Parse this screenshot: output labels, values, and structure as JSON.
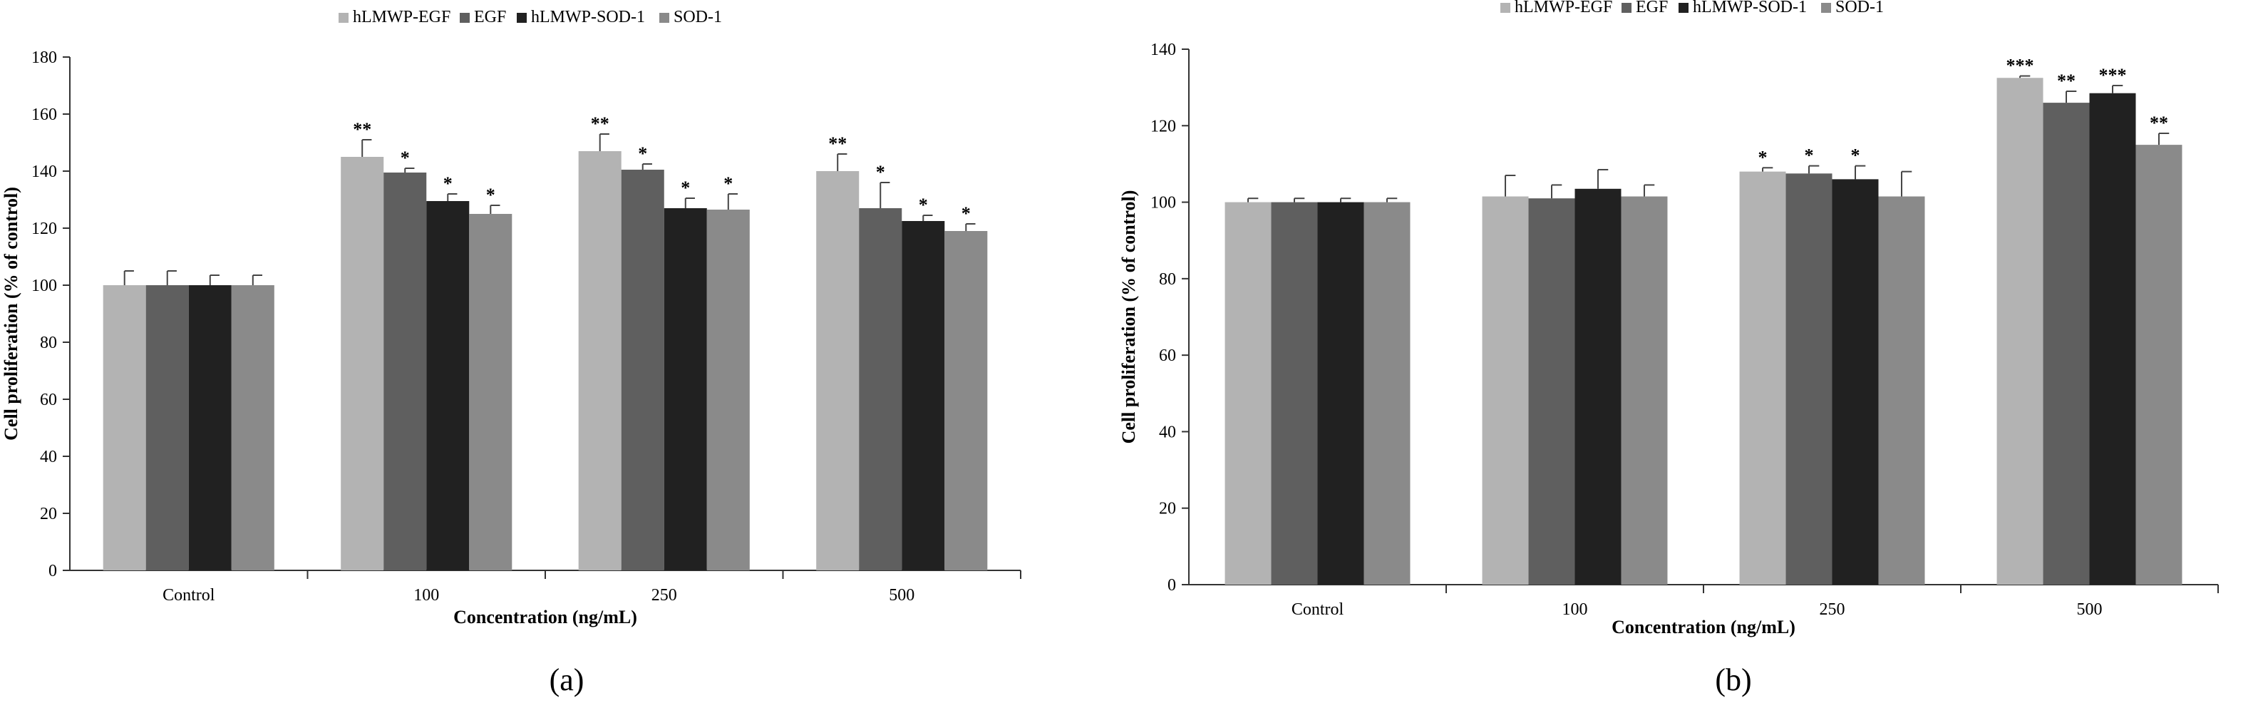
{
  "colors": {
    "hLMWP-EGF": "#b3b3b3",
    "EGF": "#5f5f5f",
    "hLMWP-SOD-1": "#212121",
    "SOD-1": "#8a8a8a",
    "axis": "#333333"
  },
  "chart_data": [
    {
      "type": "bar",
      "panel_label": "(a)",
      "xlabel": "Concentration (ng/mL)",
      "ylabel": "Cell proliferation (% of control)",
      "ylim": [
        0,
        180
      ],
      "yticks": [
        0,
        20,
        40,
        60,
        80,
        100,
        120,
        140,
        160,
        180
      ],
      "categories": [
        "Control",
        "100",
        "250",
        "500"
      ],
      "legend_position": "top-center",
      "grid": false,
      "series": [
        {
          "name": "hLMWP-EGF",
          "values": [
            100,
            145,
            147,
            140
          ],
          "errors": [
            5,
            6,
            6,
            6
          ],
          "significance": [
            "",
            "**",
            "**",
            "**"
          ]
        },
        {
          "name": "EGF",
          "values": [
            100,
            139.5,
            140.5,
            127
          ],
          "errors": [
            5,
            1.5,
            2,
            9
          ],
          "significance": [
            "",
            "*",
            "*",
            "*"
          ]
        },
        {
          "name": "hLMWP-SOD-1",
          "values": [
            100,
            129.5,
            127,
            122.5
          ],
          "errors": [
            3.5,
            2.5,
            3.5,
            2
          ],
          "significance": [
            "",
            "*",
            "*",
            "*"
          ]
        },
        {
          "name": "SOD-1",
          "values": [
            100,
            125,
            126.5,
            119
          ],
          "errors": [
            3.5,
            3,
            5.5,
            2.5
          ],
          "significance": [
            "",
            "*",
            "*",
            "*"
          ]
        }
      ]
    },
    {
      "type": "bar",
      "panel_label": "(b)",
      "xlabel": "Concentration (ng/mL)",
      "ylabel": "Cell proliferation (% of control)",
      "ylim": [
        0,
        140
      ],
      "yticks": [
        0,
        20,
        40,
        60,
        80,
        100,
        120,
        140
      ],
      "categories": [
        "Control",
        "100",
        "250",
        "500"
      ],
      "legend_position": "top-center",
      "grid": false,
      "series": [
        {
          "name": "hLMWP-EGF",
          "values": [
            100,
            101.5,
            108,
            132.5
          ],
          "errors": [
            1,
            5.5,
            1,
            0.5
          ],
          "significance": [
            "",
            "",
            "*",
            "***"
          ]
        },
        {
          "name": "EGF",
          "values": [
            100,
            101,
            107.5,
            126
          ],
          "errors": [
            1,
            3.5,
            2,
            3
          ],
          "significance": [
            "",
            "",
            "*",
            "**"
          ]
        },
        {
          "name": "hLMWP-SOD-1",
          "values": [
            100,
            103.5,
            106,
            128.5
          ],
          "errors": [
            1,
            5,
            3.5,
            2
          ],
          "significance": [
            "",
            "",
            "*",
            "***"
          ]
        },
        {
          "name": "SOD-1",
          "values": [
            100,
            101.5,
            101.5,
            115
          ],
          "errors": [
            1,
            3,
            6.5,
            3
          ],
          "significance": [
            "",
            "",
            "",
            "**"
          ]
        }
      ]
    }
  ]
}
